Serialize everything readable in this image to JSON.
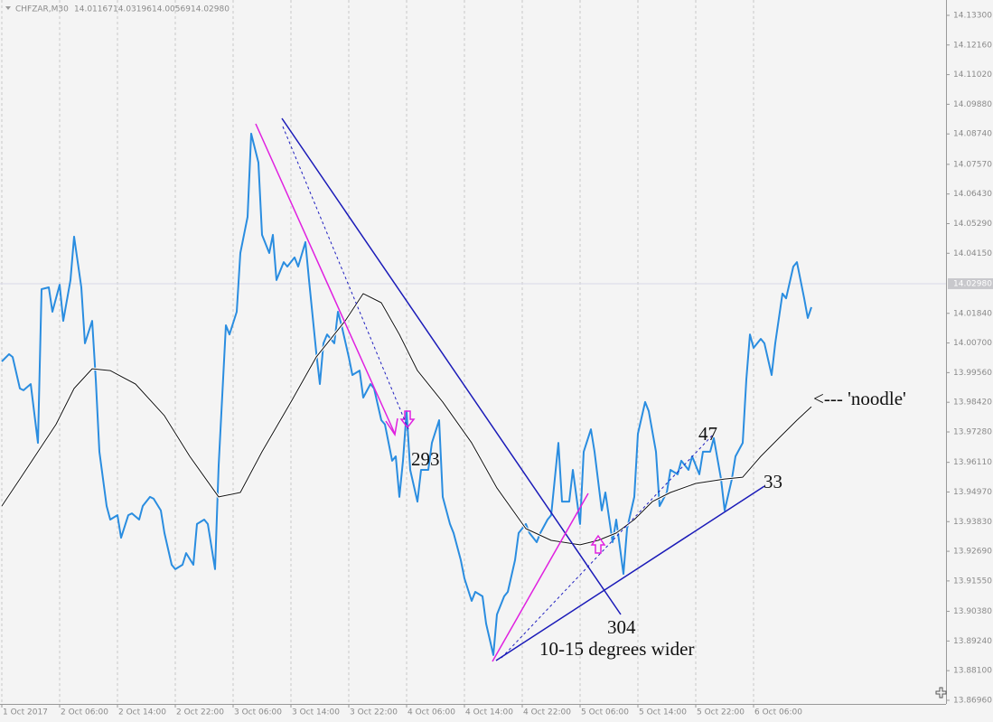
{
  "chart_data": {
    "type": "line",
    "title": "CHFZAR,M30",
    "header_values": [
      "14.01167",
      "14.03196",
      "14.00569",
      "14.02980"
    ],
    "xlim": [
      -0.5,
      261.25
    ],
    "xticks": [
      {
        "value": 0,
        "label": "1 Oct 2017"
      },
      {
        "value": 16,
        "label": "2 Oct 06:00"
      },
      {
        "value": 32,
        "label": "2 Oct 14:00"
      },
      {
        "value": 48,
        "label": "2 Oct 22:00"
      },
      {
        "value": 64,
        "label": "3 Oct 06:00"
      },
      {
        "value": 80,
        "label": "3 Oct 14:00"
      },
      {
        "value": 96,
        "label": "3 Oct 22:00"
      },
      {
        "value": 112,
        "label": "4 Oct 06:00"
      },
      {
        "value": 128,
        "label": "4 Oct 14:00"
      },
      {
        "value": 144,
        "label": "4 Oct 22:00"
      },
      {
        "value": 160,
        "label": "5 Oct 06:00"
      },
      {
        "value": 176,
        "label": "5 Oct 14:00"
      },
      {
        "value": 192,
        "label": "5 Oct 22:00"
      },
      {
        "value": 208,
        "label": "6 Oct 06:00"
      }
    ],
    "ylim": [
      13.8682,
      14.1389
    ],
    "yticks": [
      {
        "value": 14.133,
        "label": "14.13300"
      },
      {
        "value": 14.1216,
        "label": "14.12160"
      },
      {
        "value": 14.1102,
        "label": "14.11020"
      },
      {
        "value": 14.0988,
        "label": "14.09880"
      },
      {
        "value": 14.0874,
        "label": "14.08740"
      },
      {
        "value": 14.0757,
        "label": "14.07570"
      },
      {
        "value": 14.0643,
        "label": "14.06430"
      },
      {
        "value": 14.0529,
        "label": "14.05290"
      },
      {
        "value": 14.0415,
        "label": "14.04150"
      },
      {
        "value": 14.0184,
        "label": "14.01840"
      },
      {
        "value": 14.007,
        "label": "14.00700"
      },
      {
        "value": 13.9956,
        "label": "13.99560"
      },
      {
        "value": 13.9842,
        "label": "13.98420"
      },
      {
        "value": 13.9728,
        "label": "13.97280"
      },
      {
        "value": 13.9611,
        "label": "13.96110"
      },
      {
        "value": 13.9497,
        "label": "13.94970"
      },
      {
        "value": 13.9383,
        "label": "13.93830"
      },
      {
        "value": 13.9269,
        "label": "13.92690"
      },
      {
        "value": 13.9155,
        "label": "13.91550"
      },
      {
        "value": 13.9038,
        "label": "13.90380"
      },
      {
        "value": 13.8924,
        "label": "13.89240"
      },
      {
        "value": 13.881,
        "label": "13.88100"
      },
      {
        "value": 13.8696,
        "label": "13.86960"
      }
    ],
    "grid": true,
    "current_price": {
      "value": 14.0298,
      "label": "14.02980"
    },
    "series": [
      {
        "color": "#2a8de0",
        "x": [
          0,
          2,
          3,
          5,
          6,
          8,
          10,
          11,
          13,
          14,
          16,
          17,
          19,
          20,
          22,
          23,
          25,
          26,
          27,
          29,
          30,
          32,
          33,
          35,
          36,
          38,
          39,
          41,
          42,
          44,
          45,
          47,
          48,
          50,
          51,
          53,
          54,
          56,
          57,
          59,
          60,
          62,
          63,
          65,
          66,
          68,
          69,
          71,
          72,
          74,
          75,
          76,
          78,
          79,
          81,
          82,
          84,
          85,
          87,
          88,
          89,
          90,
          92,
          93,
          94,
          96,
          97,
          99,
          100,
          102,
          103,
          105,
          106,
          108,
          109,
          110,
          111,
          112,
          113,
          115,
          116,
          118,
          119,
          121,
          122,
          124,
          125,
          127,
          128,
          130,
          131,
          133,
          134,
          136,
          137,
          139,
          140,
          142,
          143,
          145,
          146,
          148,
          149,
          151,
          152,
          154,
          155,
          157,
          158,
          160,
          161,
          163,
          164,
          166,
          167,
          169,
          170,
          172,
          173,
          175,
          176,
          178,
          179,
          181,
          182,
          184,
          185,
          187,
          188,
          190,
          191,
          193,
          194,
          196,
          197,
          199,
          200,
          202,
          203,
          205,
          206,
          207,
          208,
          210,
          211,
          213,
          214,
          216,
          217,
          219,
          220,
          222,
          223,
          224
        ],
        "values": [
          13.9999,
          14.0027,
          14.0016,
          13.9895,
          13.9888,
          13.9912,
          13.9686,
          14.0277,
          14.0284,
          14.019,
          14.0294,
          14.0155,
          14.0312,
          14.0479,
          14.0284,
          14.0069,
          14.0155,
          13.993,
          13.9652,
          13.9443,
          13.9391,
          13.9408,
          13.9321,
          13.9408,
          13.9415,
          13.9391,
          13.9443,
          13.9478,
          13.9471,
          13.9426,
          13.9339,
          13.9217,
          13.92,
          13.9217,
          13.9262,
          13.9217,
          13.9374,
          13.9391,
          13.9374,
          13.92,
          13.9599,
          14.0138,
          14.0103,
          14.019,
          14.0416,
          14.0555,
          14.0875,
          14.0764,
          14.0486,
          14.0416,
          14.0486,
          14.0312,
          14.0381,
          14.0364,
          14.0399,
          14.0364,
          14.0458,
          14.0312,
          14.0034,
          13.9912,
          14.0069,
          14.0103,
          14.0069,
          14.019,
          14.0138,
          14.0016,
          13.9947,
          13.9964,
          13.986,
          13.9912,
          13.9895,
          13.9773,
          13.9757,
          13.9617,
          13.9634,
          13.9478,
          13.9617,
          13.9808,
          13.9582,
          13.946,
          13.9582,
          13.9582,
          13.9686,
          13.9773,
          13.9478,
          13.9374,
          13.9339,
          13.9235,
          13.9165,
          13.9078,
          13.9113,
          13.9096,
          13.8991,
          13.887,
          13.9026,
          13.9096,
          13.9113,
          13.9235,
          13.9339,
          13.9374,
          13.9339,
          13.9304,
          13.9339,
          13.9391,
          13.9408,
          13.9686,
          13.946,
          13.946,
          13.9582,
          13.9374,
          13.9652,
          13.9738,
          13.9652,
          13.9426,
          13.9495,
          13.9304,
          13.9391,
          13.9182,
          13.9356,
          13.9478,
          13.9721,
          13.9843,
          13.9808,
          13.9652,
          13.9443,
          13.9495,
          13.9582,
          13.9565,
          13.9617,
          13.9582,
          13.9634,
          13.9565,
          13.9652,
          13.9652,
          13.9704,
          13.9547,
          13.9426,
          13.9547,
          13.9634,
          13.9686,
          13.993,
          14.0103,
          14.0051,
          14.0086,
          14.0069,
          13.9947,
          14.0069,
          14.026,
          14.0242,
          14.0364,
          14.0381,
          14.0242,
          14.0166,
          14.0208
        ]
      },
      {
        "color": "#111111",
        "x": [
          0,
          5,
          10,
          15,
          20,
          25,
          30,
          37,
          45,
          52,
          60,
          66,
          72,
          80,
          87,
          95,
          100,
          105,
          110,
          115,
          122,
          130,
          137,
          145,
          152,
          160,
          165,
          170,
          175,
          180,
          185,
          192,
          200,
          205,
          210,
          215,
          220,
          224
        ],
        "values": [
          13.9443,
          13.9547,
          13.9652,
          13.9757,
          13.9895,
          13.9971,
          13.9964,
          13.9912,
          13.979,
          13.9634,
          13.9478,
          13.9495,
          13.9652,
          13.9843,
          14.0016,
          14.0155,
          14.026,
          14.0225,
          14.0103,
          13.9964,
          13.9843,
          13.9686,
          13.9512,
          13.9356,
          13.9311,
          13.9294,
          13.9311,
          13.9339,
          13.9391,
          13.946,
          13.9495,
          13.953,
          13.9547,
          13.9554,
          13.9634,
          13.9704,
          13.9773,
          13.9825
        ]
      }
    ],
    "annotations": [
      {
        "text": "293"
      },
      {
        "text": "304"
      },
      {
        "text": "10-15 degrees wider"
      },
      {
        "text": "47"
      },
      {
        "text": "33"
      },
      {
        "text": "<--- 'noodle'"
      }
    ]
  }
}
